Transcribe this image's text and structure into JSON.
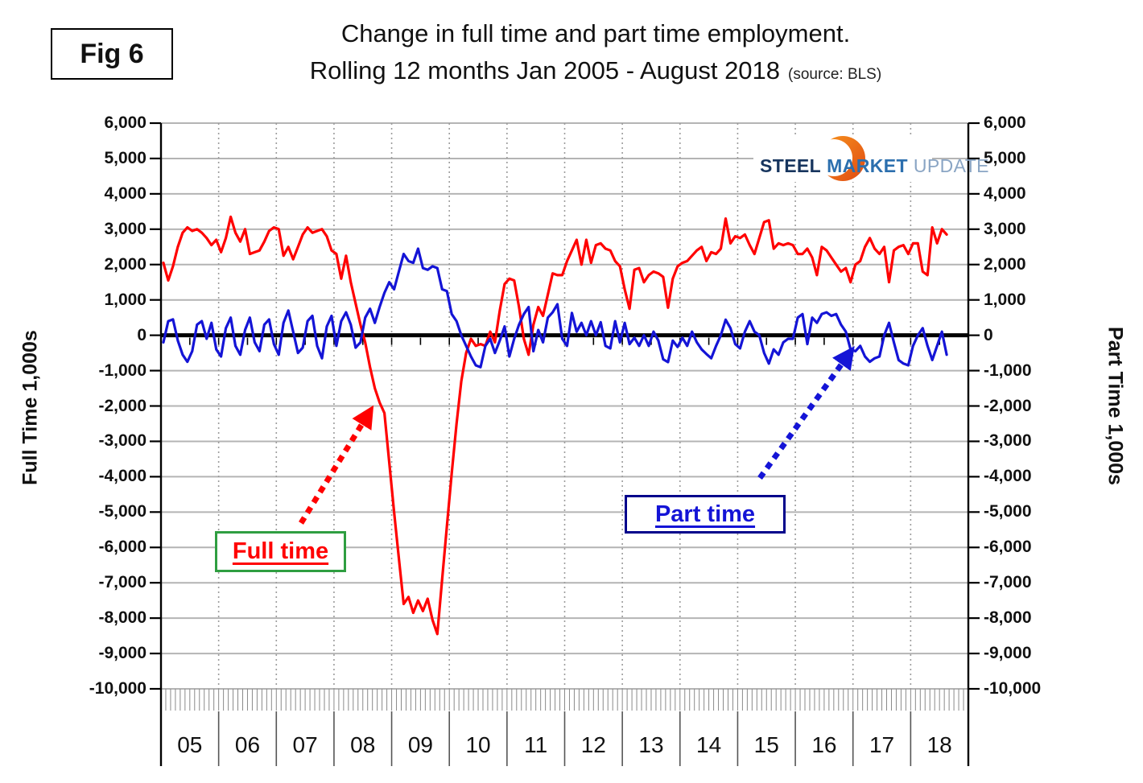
{
  "fig_label": "Fig 6",
  "title_line1": "Change in full time and part time employment.",
  "title_line2": "Rolling 12 months Jan 2005 - August 2018",
  "source": "(source: BLS)",
  "logo": {
    "word1": "STEEL",
    "word2": "MARKET",
    "word3": "UPDATE",
    "orange_light": "#F7941E",
    "orange_dark": "#E04A12",
    "dark_blue": "#17355E",
    "mid_blue": "#2C6FAE",
    "light_blue": "#8AA5C4"
  },
  "axes": {
    "left_title": "Full Time 1,000s",
    "right_title": "Part Time 1,000s",
    "y_tick_labels": [
      "6,000",
      "5,000",
      "4,000",
      "3,000",
      "2,000",
      "1,000",
      "0",
      "-1,000",
      "-2,000",
      "-3,000",
      "-4,000",
      "-5,000",
      "-6,000",
      "-7,000",
      "-8,000",
      "-9,000",
      "-10,000"
    ],
    "y_tick_values": [
      6000,
      5000,
      4000,
      3000,
      2000,
      1000,
      0,
      -1000,
      -2000,
      -3000,
      -4000,
      -5000,
      -6000,
      -7000,
      -8000,
      -9000,
      -10000
    ],
    "x_year_labels": [
      "05",
      "06",
      "07",
      "08",
      "09",
      "10",
      "11",
      "12",
      "13",
      "14",
      "15",
      "16",
      "17",
      "18"
    ]
  },
  "annotations": {
    "full_time_label": "Full time",
    "part_time_label": "Part time",
    "full_time_arrow_color": "#FF0000",
    "part_time_arrow_color": "#1414D6"
  },
  "chart_data": {
    "type": "line",
    "title": "Change in full time and part time employment. Rolling 12 months Jan 2005 - August 2018",
    "x_start": "2005-01",
    "x_end": "2018-08",
    "frequency": "monthly",
    "x_year_categories": [
      "05",
      "06",
      "07",
      "08",
      "09",
      "10",
      "11",
      "12",
      "13",
      "14",
      "15",
      "16",
      "17",
      "18"
    ],
    "ylim": [
      -10000,
      6000
    ],
    "y_step": 1000,
    "grid": "horizontal solid, vertical dotted at year boundaries",
    "legend_position": "in-plot labeled boxes with arrows",
    "series": [
      {
        "name": "Full time",
        "axis": "left (Full Time 1,000s)",
        "color": "#FF0000",
        "values": [
          2050,
          1550,
          1950,
          2500,
          2900,
          3050,
          2950,
          3000,
          2900,
          2750,
          2550,
          2700,
          2350,
          2750,
          3350,
          2900,
          2650,
          3000,
          2300,
          2350,
          2400,
          2650,
          2950,
          3050,
          3000,
          2250,
          2500,
          2150,
          2500,
          2850,
          3050,
          2900,
          2950,
          3000,
          2800,
          2400,
          2300,
          1600,
          2250,
          1500,
          900,
          300,
          -200,
          -900,
          -1500,
          -1900,
          -2200,
          -3600,
          -5000,
          -6300,
          -7600,
          -7400,
          -7850,
          -7500,
          -7800,
          -7450,
          -8050,
          -8450,
          -6900,
          -5400,
          -3900,
          -2500,
          -1300,
          -500,
          -100,
          -300,
          -250,
          -300,
          100,
          -200,
          700,
          1450,
          1600,
          1550,
          800,
          -100,
          -550,
          300,
          800,
          550,
          1150,
          1750,
          1700,
          1700,
          2100,
          2400,
          2700,
          2000,
          2700,
          2050,
          2550,
          2600,
          2450,
          2400,
          2100,
          1950,
          1300,
          750,
          1850,
          1900,
          1500,
          1700,
          1800,
          1750,
          1650,
          780,
          1600,
          1950,
          2050,
          2100,
          2250,
          2400,
          2500,
          2100,
          2350,
          2300,
          2450,
          3300,
          2600,
          2800,
          2750,
          2850,
          2550,
          2300,
          2750,
          3200,
          3250,
          2450,
          2600,
          2550,
          2600,
          2550,
          2300,
          2300,
          2450,
          2200,
          1700,
          2500,
          2400,
          2200,
          2000,
          1800,
          1900,
          1500,
          2000,
          2100,
          2500,
          2750,
          2450,
          2300,
          2500,
          1500,
          2400,
          2500,
          2550,
          2300,
          2600,
          2600,
          1800,
          1700,
          3050,
          2600,
          3000,
          2850
        ]
      },
      {
        "name": "Part time",
        "axis": "right (Part Time 1,000s)",
        "color": "#1414D6",
        "values": [
          -200,
          400,
          450,
          -150,
          -550,
          -750,
          -450,
          300,
          400,
          -100,
          350,
          -400,
          -600,
          200,
          500,
          -300,
          -550,
          150,
          500,
          -200,
          -450,
          300,
          450,
          -250,
          -550,
          350,
          700,
          100,
          -500,
          -350,
          400,
          550,
          -300,
          -650,
          250,
          550,
          -300,
          400,
          650,
          300,
          -350,
          -200,
          500,
          750,
          350,
          800,
          1200,
          1500,
          1300,
          1800,
          2300,
          2100,
          2050,
          2450,
          1900,
          1850,
          1950,
          1900,
          1300,
          1250,
          600,
          400,
          0,
          -300,
          -600,
          -850,
          -900,
          -300,
          -100,
          -500,
          -150,
          250,
          -600,
          -100,
          300,
          600,
          800,
          -450,
          150,
          -200,
          500,
          650,
          880,
          -100,
          -300,
          630,
          100,
          350,
          0,
          400,
          0,
          370,
          -300,
          -370,
          400,
          -200,
          350,
          -250,
          -70,
          -300,
          0,
          -300,
          100,
          -150,
          -680,
          -760,
          -150,
          -330,
          -70,
          -300,
          100,
          -200,
          -400,
          -530,
          -650,
          -300,
          0,
          440,
          200,
          -250,
          -370,
          100,
          400,
          100,
          0,
          -500,
          -800,
          -400,
          -550,
          -200,
          -100,
          -100,
          500,
          600,
          -250,
          500,
          350,
          600,
          650,
          550,
          600,
          300,
          100,
          -400,
          -450,
          -300,
          -600,
          -750,
          -650,
          -600,
          0,
          350,
          -200,
          -700,
          -800,
          -850,
          -300,
          0,
          200,
          -300,
          -700,
          -300,
          100,
          -550
        ]
      }
    ]
  }
}
